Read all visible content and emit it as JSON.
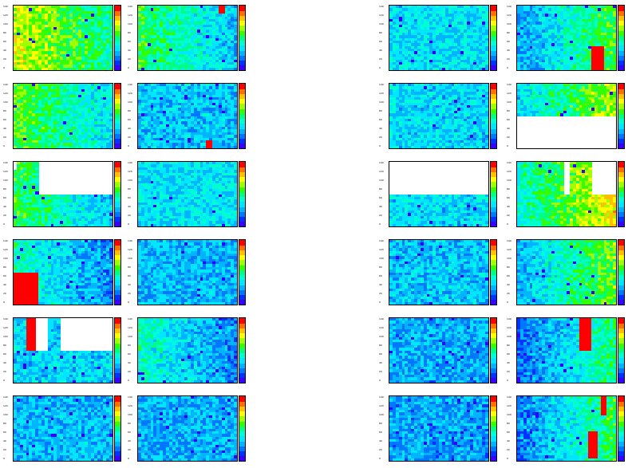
{
  "chart_data": {
    "type": "heatmap",
    "grid": {
      "rows": 6,
      "cols": 4
    },
    "colormap": [
      "#3a00ff",
      "#0033ff",
      "#0077ff",
      "#00b4ff",
      "#00e6ff",
      "#00ffd0",
      "#00ff80",
      "#33ff00",
      "#a0ff00",
      "#ffff00",
      "#ffc000",
      "#ff7000",
      "#ff0000"
    ],
    "y_ticks": [
      "0",
      "20",
      "40",
      "60",
      "80",
      "100",
      "120",
      "140"
    ],
    "panels": [
      {
        "id": "r1c1",
        "base": 0.58,
        "gradient": "left-high",
        "missing": [],
        "hot": []
      },
      {
        "id": "r1c2",
        "base": 0.42,
        "gradient": "left-high",
        "missing": [],
        "hot": [
          {
            "x0": 0.81,
            "x1": 0.87,
            "y0": 0.0,
            "y1": 0.12
          }
        ]
      },
      {
        "id": "r1c3",
        "base": 0.34,
        "gradient": "none",
        "missing": [],
        "hot": []
      },
      {
        "id": "r1c4",
        "base": 0.42,
        "gradient": "right-high",
        "missing": [],
        "hot": [
          {
            "x0": 0.74,
            "x1": 0.86,
            "y0": 0.62,
            "y1": 1.0
          }
        ]
      },
      {
        "id": "r2c1",
        "base": 0.47,
        "gradient": "left-high",
        "missing": [],
        "hot": []
      },
      {
        "id": "r2c2",
        "base": 0.3,
        "gradient": "none",
        "missing": [],
        "hot": [
          {
            "x0": 0.68,
            "x1": 0.74,
            "y0": 0.88,
            "y1": 1.0
          }
        ]
      },
      {
        "id": "r2c3",
        "base": 0.33,
        "gradient": "none",
        "missing": [],
        "hot": []
      },
      {
        "id": "r2c4",
        "base": 0.52,
        "gradient": "right-high",
        "missing": [
          {
            "x0": 0.0,
            "x1": 1.0,
            "y0": 0.5,
            "y1": 1.0
          }
        ],
        "hot": []
      },
      {
        "id": "r3c1",
        "base": 0.42,
        "gradient": "left-high",
        "missing": [
          {
            "x0": 0.24,
            "x1": 1.0,
            "y0": 0.0,
            "y1": 0.52
          },
          {
            "x0": 0.0,
            "x1": 0.04,
            "y0": 0.0,
            "y1": 0.12
          }
        ],
        "hot": []
      },
      {
        "id": "r3c2",
        "base": 0.35,
        "gradient": "none",
        "missing": [],
        "hot": []
      },
      {
        "id": "r3c3",
        "base": 0.33,
        "gradient": "none",
        "missing": [
          {
            "x0": 0.0,
            "x1": 1.0,
            "y0": 0.0,
            "y1": 0.5
          }
        ],
        "hot": []
      },
      {
        "id": "r3c4",
        "base": 0.6,
        "gradient": "right-high",
        "missing": [
          {
            "x0": 0.48,
            "x1": 0.53,
            "y0": 0.0,
            "y1": 0.52
          },
          {
            "x0": 0.76,
            "x1": 1.0,
            "y0": 0.0,
            "y1": 0.52
          }
        ],
        "hot": []
      },
      {
        "id": "r4c1",
        "base": 0.33,
        "gradient": "left-high",
        "missing": [],
        "hot": [
          {
            "x0": 0.0,
            "x1": 0.24,
            "y0": 0.5,
            "y1": 1.0
          }
        ]
      },
      {
        "id": "r4c2",
        "base": 0.28,
        "gradient": "none",
        "missing": [],
        "hot": []
      },
      {
        "id": "r4c3",
        "base": 0.3,
        "gradient": "none",
        "missing": [],
        "hot": []
      },
      {
        "id": "r4c4",
        "base": 0.46,
        "gradient": "right-high",
        "missing": [],
        "hot": []
      },
      {
        "id": "r5c1",
        "base": 0.32,
        "gradient": "none",
        "missing": [
          {
            "x0": 0.23,
            "x1": 0.35,
            "y0": 0.0,
            "y1": 0.52
          },
          {
            "x0": 0.46,
            "x1": 1.0,
            "y0": 0.0,
            "y1": 0.52
          }
        ],
        "hot": [
          {
            "x0": 0.11,
            "x1": 0.23,
            "y0": 0.0,
            "y1": 0.52
          }
        ]
      },
      {
        "id": "r5c2",
        "base": 0.32,
        "gradient": "left-high",
        "missing": [],
        "hot": []
      },
      {
        "id": "r5c3",
        "base": 0.26,
        "gradient": "none",
        "missing": [],
        "hot": []
      },
      {
        "id": "r5c4",
        "base": 0.36,
        "gradient": "right-high",
        "missing": [],
        "hot": [
          {
            "x0": 0.61,
            "x1": 0.74,
            "y0": 0.0,
            "y1": 0.52
          }
        ]
      },
      {
        "id": "r6c1",
        "base": 0.28,
        "gradient": "none",
        "missing": [],
        "hot": []
      },
      {
        "id": "r6c2",
        "base": 0.27,
        "gradient": "none",
        "missing": [],
        "hot": []
      },
      {
        "id": "r6c3",
        "base": 0.25,
        "gradient": "none",
        "missing": [],
        "hot": []
      },
      {
        "id": "r6c4",
        "base": 0.38,
        "gradient": "right-high",
        "missing": [],
        "hot": [
          {
            "x0": 0.84,
            "x1": 0.92,
            "y0": 0.0,
            "y1": 0.3
          },
          {
            "x0": 0.73,
            "x1": 0.8,
            "y0": 0.55,
            "y1": 0.95
          }
        ]
      }
    ]
  }
}
